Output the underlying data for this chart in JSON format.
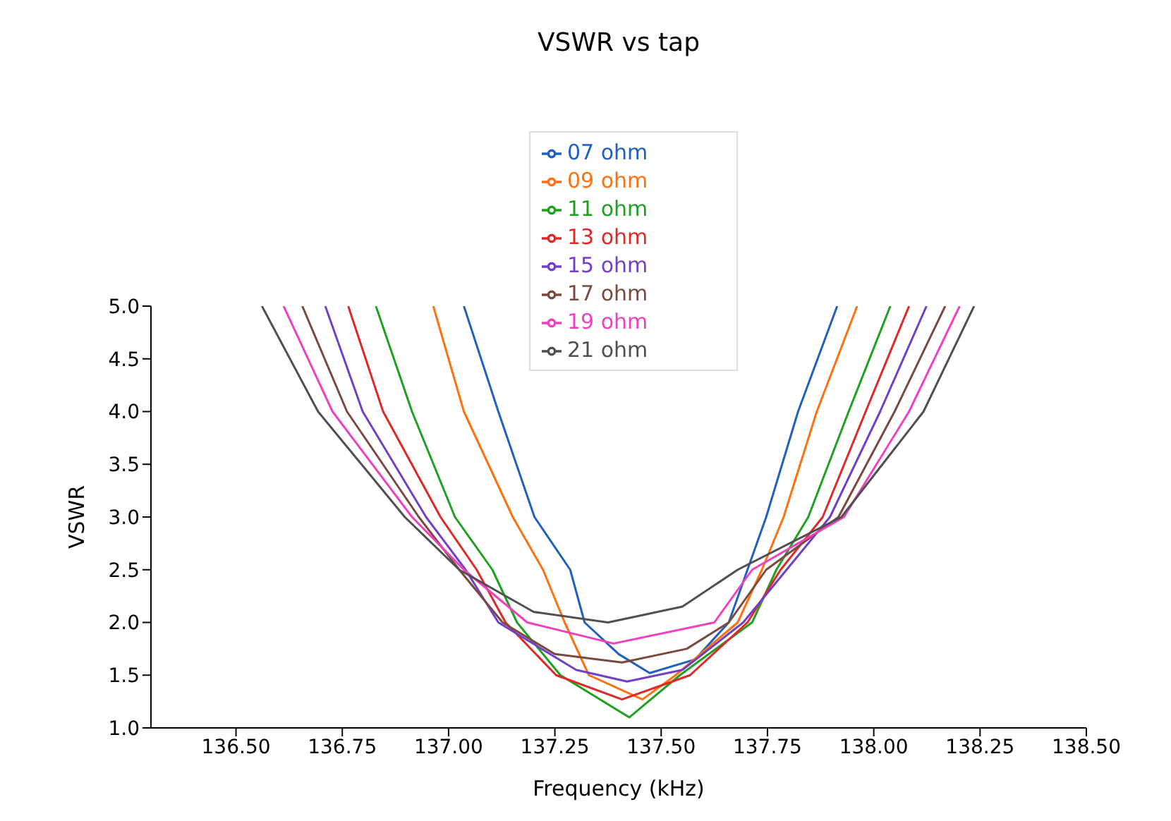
{
  "chart_data": {
    "type": "line",
    "title": "VSWR vs tap",
    "xlabel": "Frequency (kHz)",
    "ylabel": "VSWR",
    "xlim": [
      136.3,
      138.5
    ],
    "xticks": [
      {
        "value": 136.5,
        "label": "136.50"
      },
      {
        "value": 136.75,
        "label": "136.75"
      },
      {
        "value": 137,
        "label": "137.00"
      },
      {
        "value": 137.25,
        "label": "137.25"
      },
      {
        "value": 137.5,
        "label": "137.50"
      },
      {
        "value": 137.75,
        "label": "137.75"
      },
      {
        "value": 138,
        "label": "138.00"
      },
      {
        "value": 138.25,
        "label": "138.25"
      },
      {
        "value": 138.5,
        "label": "138.50"
      }
    ],
    "ylim": [
      1,
      5
    ],
    "yticks": [
      {
        "value": 1,
        "label": "1.0"
      },
      {
        "value": 1.5,
        "label": "1.5"
      },
      {
        "value": 2,
        "label": "2.0"
      },
      {
        "value": 2.5,
        "label": "2.5"
      },
      {
        "value": 3,
        "label": "3.0"
      },
      {
        "value": 3.5,
        "label": "3.5"
      },
      {
        "value": 4,
        "label": "4.0"
      },
      {
        "value": 4.5,
        "label": "4.5"
      },
      {
        "value": 5,
        "label": "5.0"
      }
    ],
    "legend": "top",
    "grid": false,
    "marker": "none",
    "line_style": "solid",
    "series": [
      {
        "name": "07 ohm",
        "color": "#2060c0",
        "x": [
          137.036,
          137.117,
          137.202,
          137.286,
          137.32,
          137.4,
          137.473,
          137.58,
          137.659,
          137.703,
          137.747,
          137.822,
          137.914
        ],
        "values": [
          5,
          4,
          3,
          2.5,
          2,
          1.7,
          1.52,
          1.65,
          2,
          2.5,
          3,
          4,
          5
        ]
      },
      {
        "name": "09 ohm",
        "color": "#ff7010",
        "x": [
          136.964,
          137.036,
          137.151,
          137.222,
          137.273,
          137.33,
          137.456,
          137.534,
          137.68,
          137.737,
          137.788,
          137.866,
          137.961
        ],
        "values": [
          5,
          4,
          3,
          2.5,
          2,
          1.5,
          1.27,
          1.5,
          2,
          2.5,
          3,
          4,
          5
        ]
      },
      {
        "name": "11 ohm",
        "color": "#20a020",
        "x": [
          136.829,
          136.914,
          137.015,
          137.103,
          137.161,
          137.263,
          137.425,
          137.544,
          137.714,
          137.771,
          137.846,
          137.941,
          138.039
        ],
        "values": [
          5,
          4,
          3,
          2.5,
          2,
          1.5,
          1.1,
          1.5,
          2,
          2.5,
          3,
          4,
          5
        ]
      },
      {
        "name": "13 ohm",
        "color": "#e02828",
        "x": [
          136.764,
          136.846,
          136.981,
          137.066,
          137.134,
          137.253,
          137.408,
          137.568,
          137.703,
          137.781,
          137.88,
          137.981,
          138.083
        ],
        "values": [
          5,
          4,
          3,
          2.5,
          2,
          1.5,
          1.27,
          1.5,
          2,
          2.5,
          3,
          4,
          5
        ]
      },
      {
        "name": "15 ohm",
        "color": "#7040c8",
        "x": [
          136.71,
          136.798,
          136.947,
          137.04,
          137.117,
          137.3,
          137.42,
          137.55,
          137.693,
          137.795,
          137.897,
          138.015,
          138.124
        ],
        "values": [
          5,
          4,
          3,
          2.5,
          2,
          1.55,
          1.44,
          1.55,
          2,
          2.5,
          3,
          4,
          5
        ]
      },
      {
        "name": "17 ohm",
        "color": "#7a4a40",
        "x": [
          136.656,
          136.761,
          136.93,
          137.025,
          137.127,
          137.25,
          137.408,
          137.56,
          137.659,
          137.747,
          137.917,
          138.049,
          138.168
        ],
        "values": [
          5,
          4,
          3,
          2.5,
          2,
          1.7,
          1.62,
          1.75,
          2,
          2.5,
          3,
          4,
          5
        ]
      },
      {
        "name": "19 ohm",
        "color": "#f040c0",
        "x": [
          136.612,
          136.727,
          136.914,
          137.036,
          137.185,
          137.388,
          137.625,
          137.714,
          137.93,
          138.083,
          138.202
        ],
        "values": [
          5,
          4,
          3,
          2.5,
          2,
          1.8,
          2,
          2.5,
          3,
          4,
          5
        ]
      },
      {
        "name": "21 ohm",
        "color": "#505050",
        "x": [
          136.561,
          136.693,
          136.897,
          137.025,
          137.2,
          137.375,
          137.55,
          137.68,
          137.924,
          138.117,
          138.236
        ],
        "values": [
          5,
          4,
          3,
          2.5,
          2.1,
          2,
          2.15,
          2.5,
          3,
          4,
          5
        ]
      }
    ]
  }
}
